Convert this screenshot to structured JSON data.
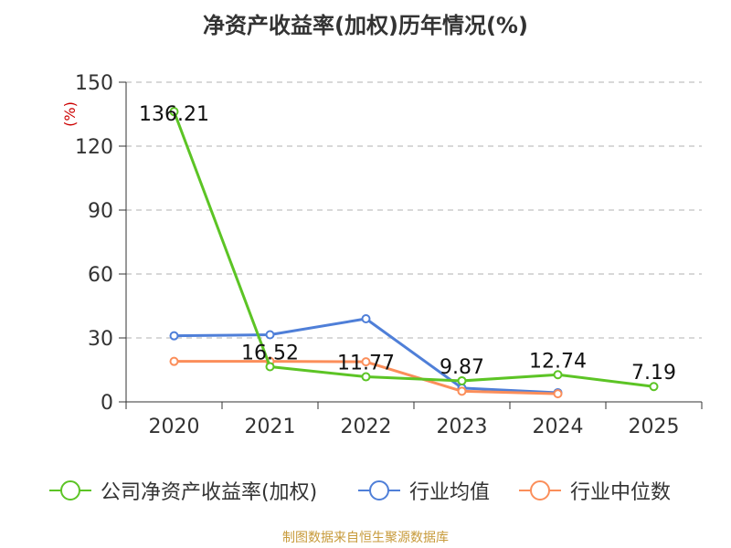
{
  "title": "净资产收益率(加权)历年情况(%)",
  "source_note": "制图数据来自恒生聚源数据库",
  "chart_data": {
    "type": "line",
    "title": "净资产收益率(加权)历年情况(%)",
    "ylabel": "(%)",
    "xlabel": "",
    "categories": [
      "2020",
      "2021",
      "2022",
      "2023",
      "2024",
      "2025"
    ],
    "ylim": [
      0,
      150
    ],
    "yticks": [
      0,
      30,
      60,
      90,
      120,
      150
    ],
    "grid": true,
    "legend_position": "bottom",
    "series": [
      {
        "name": "公司净资产收益率(加权)",
        "color": "#5cc425",
        "values": [
          136.21,
          16.52,
          11.77,
          9.87,
          12.74,
          7.19
        ],
        "labels": [
          "136.21",
          "16.52",
          "11.77",
          "9.87",
          "12.74",
          "7.19"
        ]
      },
      {
        "name": "行业均值",
        "color": "#4f7fd8",
        "values": [
          31.0,
          31.5,
          39.0,
          6.5,
          4.3,
          null
        ]
      },
      {
        "name": "行业中位数",
        "color": "#fb8e5a",
        "values": [
          19.0,
          19.0,
          18.8,
          5.0,
          3.8,
          null
        ]
      }
    ]
  }
}
